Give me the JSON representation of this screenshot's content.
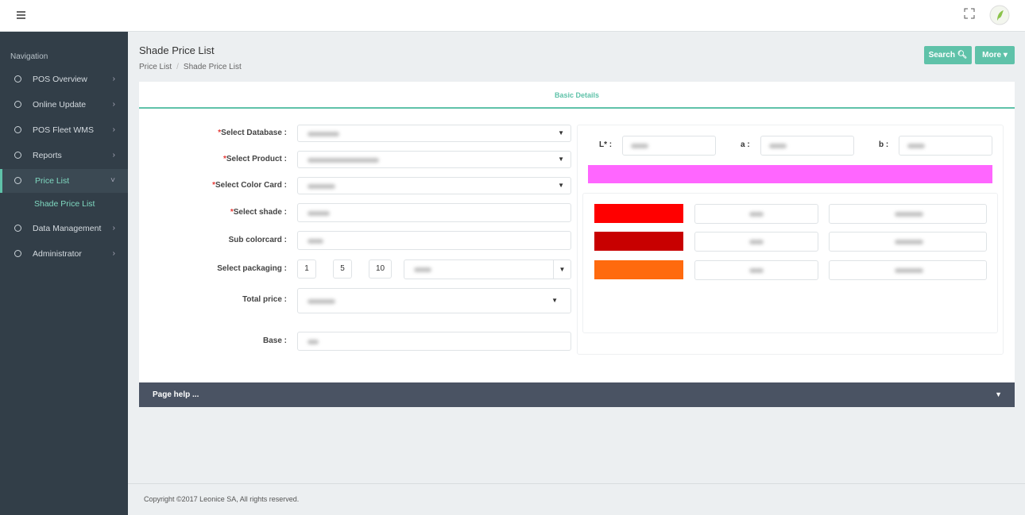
{
  "sidebar": {
    "heading": "Navigation",
    "items": [
      "POS Overview",
      "Online Update",
      "POS Fleet WMS",
      "Reports",
      "Price List",
      "Data Management",
      "Administrator"
    ],
    "active": 4,
    "subitem": "Shade Price List"
  },
  "header": {
    "title": "Shade Price List",
    "breadcrumb": [
      "Price List",
      "Shade Price List"
    ],
    "buttons": [
      "Search",
      "More"
    ]
  },
  "tab": "Basic Details",
  "form": {
    "fields": [
      {
        "mark": "*",
        "label": "Select Database :"
      },
      {
        "mark": "*",
        "label": "Select Product :"
      },
      {
        "mark": "*",
        "label": "Select Color Card :"
      },
      {
        "mark": "*",
        "label": "Select shade :"
      },
      {
        "label": "Sub colorcard :"
      },
      {
        "label": "Select packaging :"
      },
      {
        "label": "Total price :"
      },
      {
        "label": "Base :"
      }
    ],
    "packaging": [
      1,
      5,
      10
    ],
    "lab_labels": [
      "L* :",
      "a :",
      "b :"
    ],
    "preview_color": "#ff66ff",
    "swatches": [
      "#ff0000",
      "#c80000",
      "#ff6a0e"
    ]
  },
  "help": "Page help ...",
  "footer": "Copyright ©2017 Leonice SA, All rights reserved."
}
